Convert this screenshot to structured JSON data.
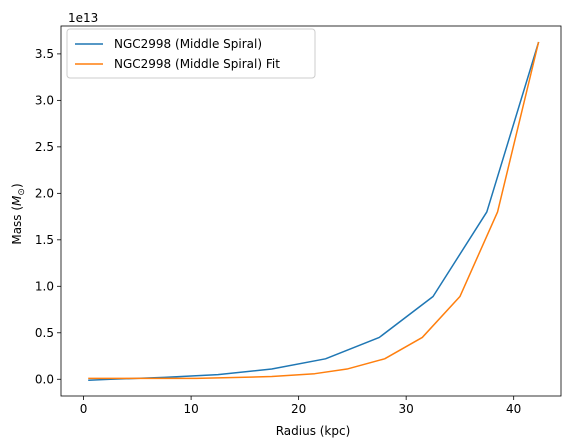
{
  "chart_data": {
    "type": "line",
    "title": "",
    "xlabel": "Radius (kpc)",
    "ylabel_main": "Mass (",
    "ylabel_math": "M",
    "ylabel_sub": "⊙",
    "ylabel_close": ")",
    "offset_text": "1e13",
    "xlim": [
      -2.1,
      44.4
    ],
    "ylim": [
      -0.18,
      3.8
    ],
    "x_ticks": [
      0,
      10,
      20,
      30,
      40
    ],
    "x_tick_labels": [
      "0",
      "10",
      "20",
      "30",
      "40"
    ],
    "y_ticks": [
      0.0,
      0.5,
      1.0,
      1.5,
      2.0,
      2.5,
      3.0,
      3.5
    ],
    "y_tick_labels": [
      "0.0",
      "0.5",
      "1.0",
      "1.5",
      "2.0",
      "2.5",
      "3.0",
      "3.5"
    ],
    "grid": false,
    "legend_position": "top-left",
    "colors": [
      "#1f77b4",
      "#ff7f0e"
    ],
    "series": [
      {
        "name": "NGC2998 (Middle Spiral)",
        "x": [
          0.5,
          2.5,
          7.5,
          12.5,
          17.5,
          22.5,
          27.5,
          32.5,
          37.5,
          42.3
        ],
        "y": [
          -0.01,
          0.0,
          0.02,
          0.05,
          0.11,
          0.22,
          0.45,
          0.89,
          1.8,
          3.62
        ]
      },
      {
        "name": "NGC2998 (Middle Spiral) Fit",
        "x": [
          0.5,
          3.5,
          7.5,
          10.5,
          14.5,
          17.5,
          21.5,
          24.5,
          28.0,
          31.5,
          35.0,
          38.5,
          42.3
        ],
        "y": [
          0.01,
          0.01,
          0.01,
          0.01,
          0.02,
          0.03,
          0.06,
          0.11,
          0.22,
          0.45,
          0.89,
          1.8,
          3.62
        ]
      }
    ]
  }
}
